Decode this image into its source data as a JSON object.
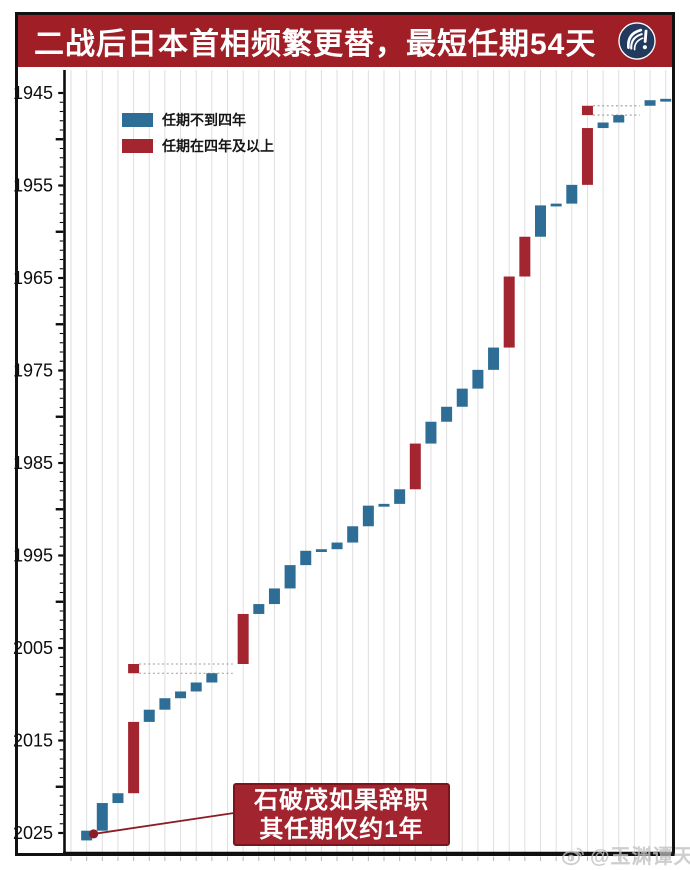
{
  "header": {
    "title": "二战后日本首相频繁更替，最短任期54天",
    "logo": "yuyuantantian-logo"
  },
  "legend": [
    {
      "label": "任期不到四年",
      "color_key": "short"
    },
    {
      "label": "任期在四年及以上",
      "color_key": "long"
    }
  ],
  "annotation": {
    "line1": "石破茂如果辞职",
    "line2": "其任期仅约1年"
  },
  "watermark": {
    "text": "@玉渊谭天",
    "icon": "weibo-eye-icon"
  },
  "colors": {
    "title_bar": "#a01e25",
    "bar_short": "#2e6e96",
    "bar_long": "#a22530",
    "annotation_bg": "#a2242e",
    "annotation_border": "#7c141c",
    "leader": "#8c1d26",
    "grid": "#dedede",
    "axis": "#0c0c0c",
    "dotted_link": "#9b9b9b",
    "tick_stub": "#b5b5b5",
    "watermark": "#c2c2c2",
    "logo_circle": "#223a5e"
  },
  "chart_data": {
    "type": "bar",
    "title": "二战后日本首相频繁更替，最短任期54天",
    "subtitle": "",
    "orientation": "columns = successive prime ministers (most recent at left); vertical axis = year of tenure, 1945 at top to 2025 at bottom",
    "grid": "vertical",
    "legend_position": "top-left",
    "y_axis": {
      "min": 1945,
      "max": 2025,
      "inverted": true,
      "major_tick_interval": 10,
      "medium_tick_interval": 5,
      "minor_tick_interval": 1,
      "tick_labels": [
        "1945",
        "1955",
        "1965",
        "1975",
        "1985",
        "1995",
        "2005",
        "2015",
        "2025"
      ]
    },
    "x_axis": {
      "columns": 38
    },
    "bars": [
      {
        "col": 1,
        "start": 2024.75,
        "end": 2025.8,
        "type": "short"
      },
      {
        "col": 2,
        "start": 2021.76,
        "end": 2024.75,
        "type": "short"
      },
      {
        "col": 3,
        "start": 2020.7,
        "end": 2021.76,
        "type": "short"
      },
      {
        "col": 4,
        "start": 2012.99,
        "end": 2020.7,
        "type": "long"
      },
      {
        "col": 4,
        "start": 2006.73,
        "end": 2007.73,
        "type": "long"
      },
      {
        "col": 5,
        "start": 2011.67,
        "end": 2012.99,
        "type": "short"
      },
      {
        "col": 6,
        "start": 2010.43,
        "end": 2011.67,
        "type": "short"
      },
      {
        "col": 7,
        "start": 2009.7,
        "end": 2010.43,
        "type": "short"
      },
      {
        "col": 8,
        "start": 2008.73,
        "end": 2009.7,
        "type": "short"
      },
      {
        "col": 9,
        "start": 2007.73,
        "end": 2008.73,
        "type": "short"
      },
      {
        "col": 11,
        "start": 2001.32,
        "end": 2006.73,
        "type": "long"
      },
      {
        "col": 12,
        "start": 2000.25,
        "end": 2001.32,
        "type": "short"
      },
      {
        "col": 13,
        "start": 1998.56,
        "end": 2000.25,
        "type": "short"
      },
      {
        "col": 14,
        "start": 1996.04,
        "end": 1998.56,
        "type": "short"
      },
      {
        "col": 15,
        "start": 1994.49,
        "end": 1996.04,
        "type": "short"
      },
      {
        "col": 16,
        "start": 1994.32,
        "end": 1994.49,
        "type": "short"
      },
      {
        "col": 17,
        "start": 1993.6,
        "end": 1994.32,
        "type": "short"
      },
      {
        "col": 18,
        "start": 1991.84,
        "end": 1993.6,
        "type": "short"
      },
      {
        "col": 19,
        "start": 1989.61,
        "end": 1991.84,
        "type": "short"
      },
      {
        "col": 20,
        "start": 1989.42,
        "end": 1989.61,
        "type": "short"
      },
      {
        "col": 21,
        "start": 1987.84,
        "end": 1989.42,
        "type": "short"
      },
      {
        "col": 22,
        "start": 1982.9,
        "end": 1987.84,
        "type": "long"
      },
      {
        "col": 23,
        "start": 1980.54,
        "end": 1982.9,
        "type": "short"
      },
      {
        "col": 24,
        "start": 1978.92,
        "end": 1980.54,
        "type": "short"
      },
      {
        "col": 25,
        "start": 1976.96,
        "end": 1978.92,
        "type": "short"
      },
      {
        "col": 26,
        "start": 1974.93,
        "end": 1976.96,
        "type": "short"
      },
      {
        "col": 27,
        "start": 1972.52,
        "end": 1974.93,
        "type": "short"
      },
      {
        "col": 28,
        "start": 1964.84,
        "end": 1972.52,
        "type": "long"
      },
      {
        "col": 29,
        "start": 1960.54,
        "end": 1964.84,
        "type": "long"
      },
      {
        "col": 30,
        "start": 1957.15,
        "end": 1960.54,
        "type": "short"
      },
      {
        "col": 31,
        "start": 1956.96,
        "end": 1957.15,
        "type": "short"
      },
      {
        "col": 32,
        "start": 1954.93,
        "end": 1956.96,
        "type": "short"
      },
      {
        "col": 33,
        "start": 1948.79,
        "end": 1954.93,
        "type": "long"
      },
      {
        "col": 33,
        "start": 1946.38,
        "end": 1947.39,
        "type": "long"
      },
      {
        "col": 34,
        "start": 1948.19,
        "end": 1948.79,
        "type": "short"
      },
      {
        "col": 35,
        "start": 1947.39,
        "end": 1948.19,
        "type": "short"
      },
      {
        "col": 37,
        "start": 1945.78,
        "end": 1946.38,
        "type": "short"
      },
      {
        "col": 38,
        "start": 1945.63,
        "end": 1945.78,
        "type": "short"
      }
    ],
    "dotted_links": [
      {
        "from_col": 4,
        "to_col": 10,
        "start": 2006.73,
        "end": 2007.73
      },
      {
        "from_col": 33,
        "to_col": 36,
        "start": 1946.38,
        "end": 1947.39
      }
    ],
    "callout": {
      "dot_col": 1,
      "dot_year": 2025.1,
      "line1": "石破茂如果辞职",
      "line2": "其任期仅约1年"
    }
  }
}
